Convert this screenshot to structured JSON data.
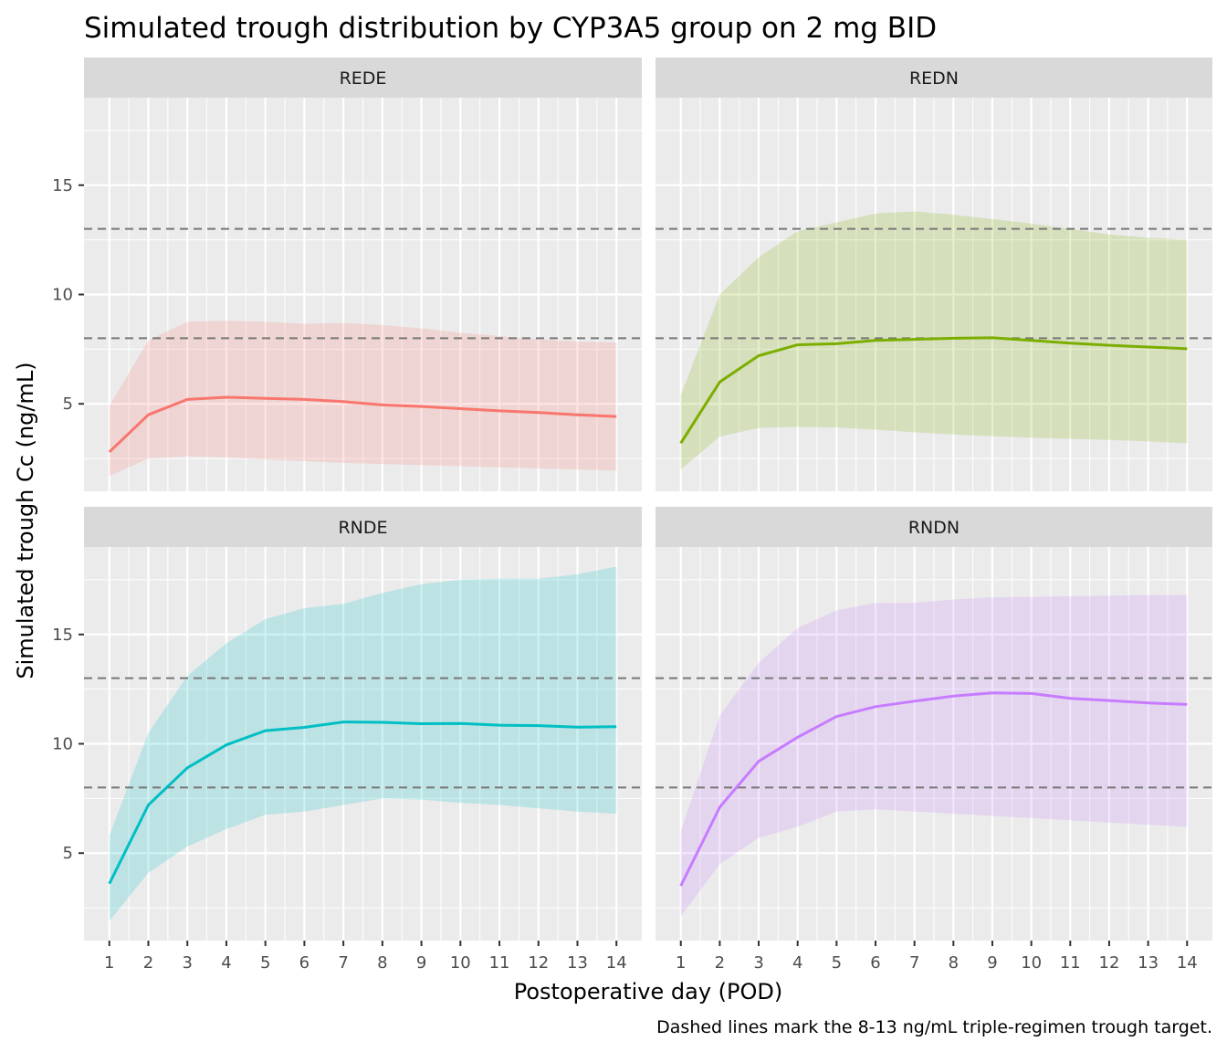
{
  "chart_data": {
    "type": "area",
    "title": "Simulated trough distribution by CYP3A5 group on 2 mg BID",
    "xlabel": "Postoperative day (POD)",
    "ylabel": "Simulated trough Cc (ng/mL)",
    "caption": "Dashed lines mark the 8-13 ng/mL triple-regimen trough target.",
    "x": [
      1,
      2,
      3,
      4,
      5,
      6,
      7,
      8,
      9,
      10,
      11,
      12,
      13,
      14
    ],
    "x_ticks": [
      "1",
      "2",
      "3",
      "4",
      "5",
      "6",
      "7",
      "8",
      "9",
      "10",
      "11",
      "12",
      "13",
      "14"
    ],
    "y_ticks": [
      5,
      10,
      15
    ],
    "y_tick_labels": [
      "5",
      "10",
      "15"
    ],
    "target_lines": [
      8,
      13
    ],
    "panels": [
      {
        "strip": "REDE",
        "ylim": [
          1.0,
          19.0
        ],
        "color": "#F8766D",
        "median": [
          2.8,
          4.5,
          5.2,
          5.3,
          5.25,
          5.2,
          5.1,
          4.95,
          4.88,
          4.78,
          4.68,
          4.6,
          4.5,
          4.42
        ],
        "lower": [
          1.7,
          2.5,
          2.6,
          2.55,
          2.45,
          2.38,
          2.3,
          2.25,
          2.2,
          2.15,
          2.1,
          2.05,
          2.0,
          1.95
        ],
        "upper": [
          4.9,
          7.9,
          8.75,
          8.8,
          8.75,
          8.65,
          8.7,
          8.6,
          8.45,
          8.25,
          8.1,
          7.95,
          7.85,
          7.8
        ]
      },
      {
        "strip": "REDN",
        "ylim": [
          1.0,
          19.0
        ],
        "color": "#7CAE00",
        "median": [
          3.2,
          6.0,
          7.2,
          7.7,
          7.75,
          7.9,
          7.95,
          8.0,
          8.02,
          7.9,
          7.78,
          7.68,
          7.6,
          7.52
        ],
        "lower": [
          2.0,
          3.5,
          3.9,
          3.95,
          3.92,
          3.82,
          3.7,
          3.6,
          3.52,
          3.45,
          3.4,
          3.35,
          3.28,
          3.2
        ],
        "upper": [
          5.4,
          10.0,
          11.7,
          12.9,
          13.3,
          13.7,
          13.8,
          13.65,
          13.45,
          13.25,
          13.0,
          12.75,
          12.6,
          12.5
        ]
      },
      {
        "strip": "RNDE",
        "ylim": [
          1.0,
          19.0
        ],
        "color": "#00BFC4",
        "median": [
          3.6,
          7.2,
          8.9,
          9.95,
          10.6,
          10.75,
          11.0,
          10.98,
          10.92,
          10.93,
          10.85,
          10.83,
          10.76,
          10.78
        ],
        "lower": [
          1.9,
          4.1,
          5.3,
          6.1,
          6.75,
          6.9,
          7.2,
          7.5,
          7.45,
          7.3,
          7.2,
          7.05,
          6.9,
          6.8
        ],
        "upper": [
          5.8,
          10.5,
          13.1,
          14.6,
          15.7,
          16.2,
          16.4,
          16.9,
          17.3,
          17.5,
          17.55,
          17.55,
          17.75,
          18.1
        ]
      },
      {
        "strip": "RNDN",
        "ylim": [
          1.0,
          19.0
        ],
        "color": "#C77CFF",
        "median": [
          3.5,
          7.1,
          9.2,
          10.3,
          11.25,
          11.7,
          11.95,
          12.18,
          12.33,
          12.3,
          12.08,
          11.98,
          11.87,
          11.8
        ],
        "lower": [
          2.1,
          4.5,
          5.7,
          6.2,
          6.9,
          7.0,
          6.9,
          6.8,
          6.7,
          6.6,
          6.5,
          6.4,
          6.3,
          6.2
        ],
        "upper": [
          6.0,
          11.3,
          13.7,
          15.3,
          16.1,
          16.45,
          16.45,
          16.6,
          16.7,
          16.72,
          16.75,
          16.78,
          16.8,
          16.8
        ]
      }
    ]
  }
}
